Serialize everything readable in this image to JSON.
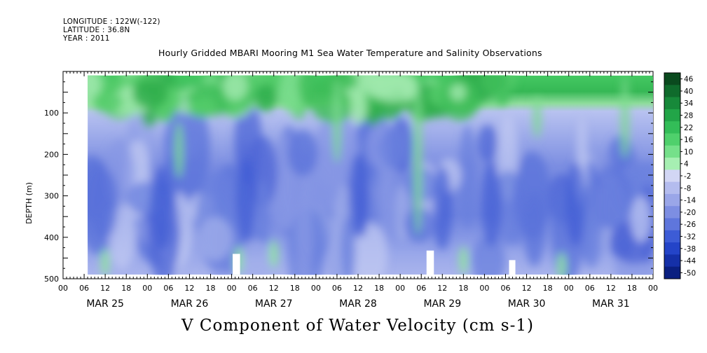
{
  "header": {
    "longitude": "LONGITUDE : 122W(-122)",
    "latitude": "LATITUDE : 36.8N",
    "year": "YEAR : 2011"
  },
  "title": "Hourly Gridded MBARI Mooring M1 Sea Water Temperature and Salinity Observations",
  "caption": "V Component of Water Velocity (cm s-1)",
  "chart_data": {
    "type": "heatmap",
    "title": "Hourly Gridded MBARI Mooring M1 Sea Water Temperature and Salinity Observations",
    "xlabel": "",
    "ylabel": "DEPTH (m)",
    "ylim": [
      500,
      0
    ],
    "y_ticks": [
      100,
      200,
      300,
      400,
      500
    ],
    "x_hour_ticks": [
      "00",
      "06",
      "12",
      "18",
      "00",
      "06",
      "12",
      "18",
      "00",
      "06",
      "12",
      "18",
      "00",
      "06",
      "12",
      "18",
      "00",
      "06",
      "12",
      "18",
      "00",
      "06",
      "12",
      "18",
      "00",
      "06",
      "12",
      "18",
      "00"
    ],
    "x_day_labels": [
      "MAR 25",
      "MAR 26",
      "MAR 27",
      "MAR 28",
      "MAR 29",
      "MAR 30",
      "MAR 31"
    ],
    "data_range_hours": [
      7,
      168
    ],
    "data_depth_range": [
      10,
      490
    ],
    "colorbar": {
      "labels": [
        "46",
        "40",
        "34",
        "28",
        "22",
        "16",
        "10",
        "4",
        "-2",
        "-8",
        "-14",
        "-20",
        "-26",
        "-32",
        "-38",
        "-44",
        "-50"
      ],
      "colors": [
        "#0a4a1e",
        "#0f6b2c",
        "#17893a",
        "#22a548",
        "#33bd58",
        "#4fd06c",
        "#75e08a",
        "#a6efb2",
        "#d2d6f4",
        "#b4bcee",
        "#9aa6e8",
        "#7d8ee2",
        "#5f76dc",
        "#3d5cd6",
        "#2444c8",
        "#1530a8",
        "#0a1f80"
      ]
    },
    "features": [
      {
        "name": "near-surface positive band",
        "depth_range": [
          10,
          90
        ],
        "value_range": [
          10,
          34
        ]
      },
      {
        "name": "mid-depth negative core",
        "depth_range": [
          200,
          420
        ],
        "value_range": [
          -32,
          -14
        ]
      }
    ]
  }
}
